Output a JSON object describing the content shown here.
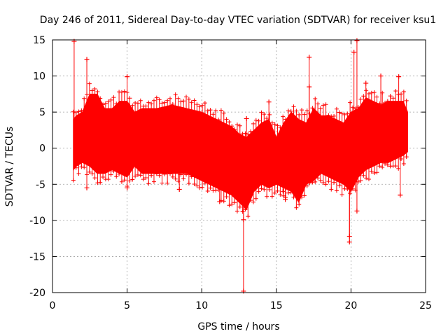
{
  "chart_data": {
    "type": "scatter",
    "title": "Day 246 of 2011, Sidereal Day-to-day VTEC variation (SDTVAR) for receiver ksu1",
    "xlabel": "GPS time / hours",
    "ylabel": "SDTVAR / TECUs",
    "xlim": [
      0,
      25
    ],
    "ylim": [
      -20,
      15
    ],
    "xticks": [
      0,
      5,
      10,
      15,
      20,
      25
    ],
    "yticks": [
      -20,
      -15,
      -10,
      -5,
      0,
      5,
      10,
      15
    ],
    "grid": true,
    "legend": "none",
    "series": [
      {
        "name": "SDTVAR",
        "color": "#ff0000",
        "marker": "plus",
        "envelope": {
          "x": [
            1.4,
            1.6,
            2.0,
            2.5,
            3.0,
            3.5,
            4.0,
            4.5,
            5.0,
            5.5,
            6.0,
            7.0,
            8.0,
            9.0,
            10.0,
            10.5,
            11.0,
            12.0,
            12.5,
            13.0,
            13.5,
            14.0,
            14.5,
            15.0,
            15.5,
            16.0,
            16.5,
            17.0,
            17.5,
            18.0,
            18.5,
            19.0,
            19.5,
            20.0,
            20.5,
            21.0,
            21.5,
            22.0,
            22.5,
            23.0,
            23.5,
            23.8
          ],
          "upper": [
            4.0,
            4.5,
            5.0,
            7.5,
            7.5,
            5.5,
            5.5,
            6.5,
            6.5,
            5.0,
            5.5,
            5.5,
            6.0,
            5.5,
            5.0,
            4.5,
            4.0,
            3.0,
            2.0,
            1.5,
            2.5,
            3.5,
            4.0,
            1.5,
            3.5,
            5.0,
            4.0,
            3.5,
            5.5,
            4.5,
            4.5,
            4.0,
            3.5,
            5.0,
            5.5,
            7.0,
            6.5,
            6.0,
            6.5,
            6.5,
            6.5,
            5.0
          ],
          "lower": [
            -3.0,
            -2.5,
            -2.0,
            -2.5,
            -3.5,
            -3.5,
            -3.0,
            -3.5,
            -4.0,
            -2.5,
            -3.5,
            -3.5,
            -3.5,
            -3.5,
            -4.5,
            -5.0,
            -5.5,
            -6.5,
            -7.5,
            -8.5,
            -6.0,
            -5.0,
            -5.5,
            -5.0,
            -5.5,
            -6.0,
            -7.5,
            -5.0,
            -4.5,
            -3.5,
            -4.0,
            -4.5,
            -5.0,
            -6.0,
            -4.0,
            -3.0,
            -2.5,
            -2.0,
            -2.0,
            -1.5,
            -1.0,
            -0.5
          ]
        },
        "outliers": [
          {
            "x": 1.45,
            "y": 14.8
          },
          {
            "x": 2.3,
            "y": 12.3
          },
          {
            "x": 2.3,
            "y": -5.5
          },
          {
            "x": 5.0,
            "y": 9.9
          },
          {
            "x": 5.0,
            "y": -5.5
          },
          {
            "x": 8.5,
            "y": -5.7
          },
          {
            "x": 11.2,
            "y": -7.4
          },
          {
            "x": 12.8,
            "y": -9.9
          },
          {
            "x": 12.8,
            "y": -19.8
          },
          {
            "x": 13.0,
            "y": 4.1
          },
          {
            "x": 14.5,
            "y": 6.4
          },
          {
            "x": 15.5,
            "y": -6.6
          },
          {
            "x": 15.6,
            "y": -7.1
          },
          {
            "x": 17.2,
            "y": 12.6
          },
          {
            "x": 17.2,
            "y": 8.5
          },
          {
            "x": 19.9,
            "y": -13.0
          },
          {
            "x": 19.9,
            "y": -12.2
          },
          {
            "x": 20.2,
            "y": 13.3
          },
          {
            "x": 20.4,
            "y": 14.9
          },
          {
            "x": 20.4,
            "y": -8.7
          },
          {
            "x": 21.0,
            "y": 9.0
          },
          {
            "x": 22.0,
            "y": 10.0
          },
          {
            "x": 23.2,
            "y": 9.9
          },
          {
            "x": 23.3,
            "y": -6.5
          }
        ]
      }
    ]
  }
}
